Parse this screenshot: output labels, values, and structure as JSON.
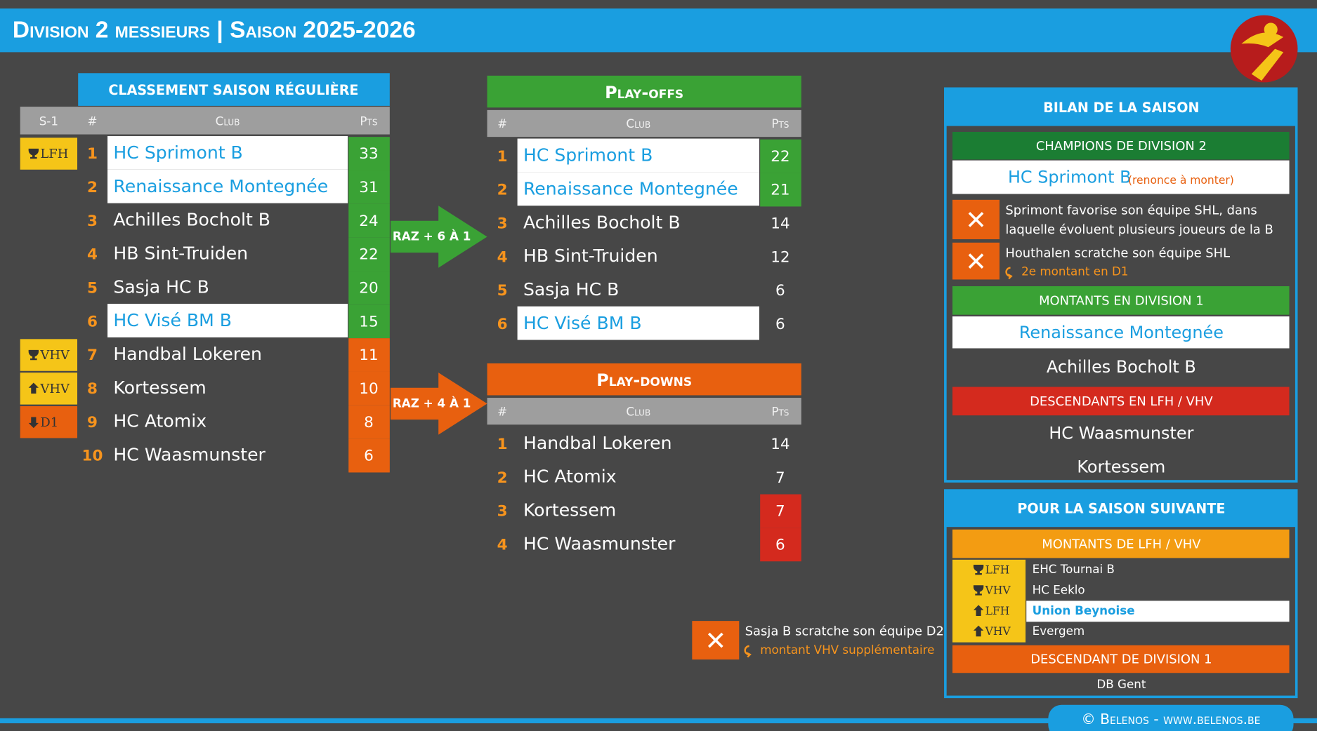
{
  "header": {
    "title": "Division 2 messieurs | Saison 2025-2026"
  },
  "regular": {
    "title": "CLASSEMENT SAISON RÉGULIÈRE",
    "columns": [
      "S-1",
      "#",
      "Club",
      "Pts"
    ],
    "rows": [
      {
        "badge": {
          "icon": "trophy",
          "label": "LFH",
          "color": "#f5c518"
        },
        "rank": 1,
        "club": "HC Sprimont B",
        "pts": 33,
        "highlight": true,
        "pts_color": "#3aa235"
      },
      {
        "rank": 2,
        "club": "Renaissance Montegnée",
        "pts": 31,
        "highlight": true,
        "pts_color": "#3aa235"
      },
      {
        "rank": 3,
        "club": "Achilles Bocholt B",
        "pts": 24,
        "pts_color": "#3aa235"
      },
      {
        "rank": 4,
        "club": "HB Sint-Truiden",
        "pts": 22,
        "pts_color": "#3aa235"
      },
      {
        "rank": 5,
        "club": "Sasja HC B",
        "pts": 20,
        "pts_color": "#3aa235"
      },
      {
        "rank": 6,
        "club": "HC Visé BM B",
        "pts": 15,
        "highlight": true,
        "pts_color": "#3aa235"
      },
      {
        "badge": {
          "icon": "trophy",
          "label": "VHV",
          "color": "#f5c518"
        },
        "rank": 7,
        "club": "Handbal Lokeren",
        "pts": 11,
        "pts_color": "#e8600f"
      },
      {
        "badge": {
          "icon": "up",
          "label": "VHV",
          "color": "#f5c518"
        },
        "rank": 8,
        "club": "Kortessem",
        "pts": 10,
        "pts_color": "#e8600f"
      },
      {
        "badge": {
          "icon": "down",
          "label": "D1",
          "color": "#e8600f"
        },
        "rank": 9,
        "club": "HC Atomix",
        "pts": 8,
        "pts_color": "#e8600f"
      },
      {
        "rank": 10,
        "club": "HC Waasmunster",
        "pts": 6,
        "pts_color": "#e8600f"
      }
    ]
  },
  "transitions": [
    {
      "label": "RAZ + 6 À 1",
      "color": "#3aa235"
    },
    {
      "label": "RAZ + 4 À 1",
      "color": "#e8600f"
    }
  ],
  "playoffs": {
    "title": "Play-offs",
    "color": "#3aa235",
    "columns": [
      "#",
      "Club",
      "Pts"
    ],
    "rows": [
      {
        "rank": 1,
        "club": "HC Sprimont B",
        "pts": 22,
        "highlight": true,
        "pts_color": "#3aa235"
      },
      {
        "rank": 2,
        "club": "Renaissance Montegnée",
        "pts": 21,
        "highlight": true,
        "pts_color": "#3aa235"
      },
      {
        "rank": 3,
        "club": "Achilles Bocholt B",
        "pts": 14
      },
      {
        "rank": 4,
        "club": "HB Sint-Truiden",
        "pts": 12
      },
      {
        "rank": 5,
        "club": "Sasja HC B",
        "pts": 6
      },
      {
        "rank": 6,
        "club": "HC Visé BM B",
        "pts": 6,
        "highlight": true
      }
    ]
  },
  "playdowns": {
    "title": "Play-downs",
    "color": "#e8600f",
    "columns": [
      "#",
      "Club",
      "Pts"
    ],
    "rows": [
      {
        "rank": 1,
        "club": "Handbal Lokeren",
        "pts": 14
      },
      {
        "rank": 2,
        "club": "HC Atomix",
        "pts": 7
      },
      {
        "rank": 3,
        "club": "Kortessem",
        "pts": 7,
        "pts_color": "#d42a1e"
      },
      {
        "rank": 4,
        "club": "HC Waasmunster",
        "pts": 6,
        "pts_color": "#d42a1e"
      }
    ]
  },
  "note": {
    "text": "Sasja B scratche son équipe D2",
    "detail": "montant VHV supplémentaire"
  },
  "summary": {
    "title": "BILAN DE LA SAISON",
    "champions": {
      "title": "CHAMPIONS DE DIVISION 2",
      "team": "HC Sprimont B",
      "remark": "(renonce à monter)"
    },
    "notes": [
      {
        "lines": [
          "Sprimont favorise son équipe SHL, dans",
          "laquelle évoluent plusieurs joueurs de la B"
        ]
      },
      {
        "lines": [
          "Houthalen scratche son équipe SHL"
        ],
        "detail": "2e montant en D1"
      }
    ],
    "promoted": {
      "title": "MONTANTS EN DIVISION 1",
      "teams": [
        "Renaissance Montegnée",
        "Achilles Bocholt B"
      ]
    },
    "relegated": {
      "title": "DESCENDANTS EN LFH / VHV",
      "teams": [
        "HC Waasmunster",
        "Kortessem"
      ]
    }
  },
  "next": {
    "title": "POUR LA SAISON SUIVANTE",
    "promoted": {
      "title": "MONTANTS DE LFH / VHV",
      "rows": [
        {
          "icon": "trophy",
          "label": "LFH",
          "team": "EHC Tournai B"
        },
        {
          "icon": "trophy",
          "label": "VHV",
          "team": "HC Eeklo"
        },
        {
          "icon": "up",
          "label": "LFH",
          "team": "Union Beynoise",
          "highlight": true
        },
        {
          "icon": "up",
          "label": "VHV",
          "team": "Evergem"
        }
      ]
    },
    "relegated": {
      "title": "DESCENDANT DE DIVISION 1",
      "teams": [
        "DB Gent"
      ]
    }
  },
  "footer": "© Belenos - www.belenos.be"
}
